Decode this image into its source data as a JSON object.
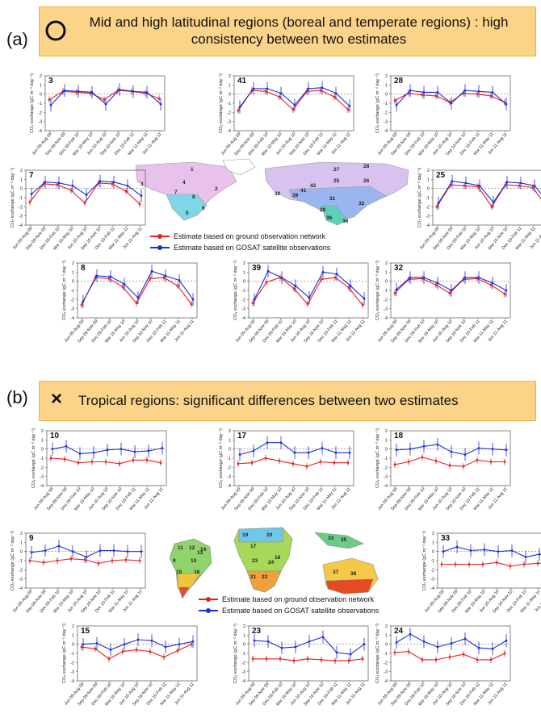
{
  "panel_a": {
    "label": "(a)",
    "mark": "circle",
    "banner_line1": "Mid and high latitudinal regions (boreal and temperate regions) : high",
    "banner_line2": "consistency between two estimates",
    "legend_ground": "Estimate based on ground observation network",
    "legend_gosat": "Estimate based on GOSAT satellite observations",
    "map_region_labels": [
      "1",
      "2",
      "3",
      "4",
      "5",
      "6",
      "7",
      "8",
      "25",
      "26",
      "27",
      "28",
      "29",
      "30",
      "31",
      "32",
      "34",
      "36",
      "39",
      "41",
      "42"
    ]
  },
  "panel_b": {
    "label": "(b)",
    "mark": "×",
    "banner_text": "Tropical regions: significant differences between two estimates",
    "legend_ground": "Estimate based on ground observation network",
    "legend_gosat": "Estimate based on GOSAT satellite observations",
    "map_region_labels": [
      "9",
      "10",
      "11",
      "12",
      "13",
      "14",
      "15",
      "16",
      "17",
      "18",
      "19",
      "20",
      "21",
      "22",
      "23",
      "24",
      "33",
      "35",
      "37",
      "38"
    ]
  },
  "colors": {
    "ground": "#e8201e",
    "gosat": "#1f2fd6",
    "banner": "#fbd48a",
    "banner_border": "#f0b040"
  },
  "common": {
    "y_label": "CO₂ exchange (gC m⁻² day⁻¹)",
    "categories": [
      "Jun 09-Aug 09",
      "Sep 09-Nov 09",
      "Dec 09-Feb 10",
      "Mar 10-May 10",
      "Jun 10-Aug 10",
      "Sep 10-Nov 10",
      "Dec 10-Feb 11",
      "Mar 11-May 11",
      "Jun 11-Aug 11"
    ],
    "ylim": [
      -4,
      2
    ],
    "yticks": [
      2,
      1,
      0,
      -1,
      -2,
      -3,
      -4
    ]
  },
  "chart_data": [
    {
      "type": "line",
      "title": "3",
      "categories": [
        "Jun 09-Aug 09",
        "Sep 09-Nov 09",
        "Dec 09-Feb 10",
        "Mar 10-May 10",
        "Jun 10-Aug 10",
        "Sep 10-Nov 10",
        "Dec 10-Feb 11",
        "Mar 11-May 11",
        "Jun 11-Aug 11"
      ],
      "ylim": [
        -4,
        2
      ],
      "series": [
        {
          "name": "Estimate based on ground observation network",
          "values": [
            -0.6,
            0.3,
            0.2,
            0.1,
            -0.6,
            0.4,
            0.3,
            0.1,
            -0.5
          ]
        },
        {
          "name": "Estimate based on GOSAT satellite observations",
          "values": [
            -1.2,
            0.4,
            0.3,
            0.2,
            -1.1,
            0.5,
            0.3,
            0.2,
            -1.1
          ]
        }
      ]
    },
    {
      "type": "line",
      "title": "41",
      "categories": [
        "Jun 09-Aug 09",
        "Sep 09-Nov 09",
        "Dec 09-Feb 10",
        "Mar 10-May 10",
        "Jun 10-Aug 10",
        "Sep 10-Nov 10",
        "Dec 10-Feb 11",
        "Mar 11-May 11",
        "Jun 11-Aug 11"
      ],
      "ylim": [
        -4,
        2
      ],
      "series": [
        {
          "name": "Estimate based on ground observation network",
          "values": [
            -1.8,
            0.4,
            0.3,
            -0.3,
            -1.7,
            0.3,
            0.4,
            -0.3,
            -1.7
          ]
        },
        {
          "name": "Estimate based on GOSAT satellite observations",
          "values": [
            -1.4,
            0.6,
            0.6,
            0.1,
            -1.2,
            0.6,
            0.7,
            0.1,
            -1.3
          ]
        }
      ]
    },
    {
      "type": "line",
      "title": "28",
      "categories": [
        "Jun 09-Aug 09",
        "Sep 09-Nov 09",
        "Dec 09-Feb 10",
        "Mar 10-May 10",
        "Jun 10-Aug 10",
        "Sep 10-Nov 10",
        "Dec 10-Feb 11",
        "Mar 11-May 11",
        "Jun 11-Aug 11"
      ],
      "ylim": [
        -4,
        2
      ],
      "series": [
        {
          "name": "Estimate based on ground observation network",
          "values": [
            -0.7,
            0.1,
            -0.1,
            -0.2,
            -0.9,
            0.1,
            0.0,
            -0.2,
            -0.9
          ]
        },
        {
          "name": "Estimate based on GOSAT satellite observations",
          "values": [
            -1.2,
            0.4,
            0.2,
            0.2,
            -1.0,
            0.4,
            0.3,
            0.2,
            -1.1
          ]
        }
      ]
    },
    {
      "type": "line",
      "title": "7",
      "categories": [
        "Jun 09-Aug 09",
        "Sep 09-Nov 09",
        "Dec 09-Feb 10",
        "Mar 10-May 10",
        "Jun 10-Aug 10",
        "Sep 10-Nov 10",
        "Dec 10-Feb 11",
        "Mar 11-May 11",
        "Jun 11-Aug 11"
      ],
      "ylim": [
        -4,
        2
      ],
      "series": [
        {
          "name": "Estimate based on ground observation network",
          "values": [
            -1.5,
            0.5,
            0.4,
            -0.2,
            -1.6,
            0.6,
            0.5,
            -0.3,
            -1.7
          ]
        },
        {
          "name": "Estimate based on GOSAT satellite observations",
          "values": [
            -0.6,
            0.7,
            0.6,
            0.3,
            -0.7,
            0.8,
            0.7,
            0.3,
            -0.8
          ]
        }
      ]
    },
    {
      "type": "line",
      "title": "25",
      "categories": [
        "Jun 09-Aug 09",
        "Sep 09-Nov 09",
        "Dec 09-Feb 10",
        "Mar 10-May 10",
        "Jun 10-Aug 10",
        "Sep 10-Nov 10",
        "Dec 10-Feb 11",
        "Mar 11-May 11",
        "Jun 11-Aug 11"
      ],
      "ylim": [
        -4,
        2
      ],
      "series": [
        {
          "name": "Estimate based on ground observation network",
          "values": [
            -2.0,
            0.4,
            0.3,
            0.2,
            -2.0,
            0.4,
            0.3,
            0.1,
            -2.0
          ]
        },
        {
          "name": "Estimate based on GOSAT satellite observations",
          "values": [
            -1.6,
            0.8,
            0.6,
            0.3,
            -1.5,
            0.7,
            0.6,
            0.3,
            -1.5
          ]
        }
      ]
    },
    {
      "type": "line",
      "title": "8",
      "categories": [
        "Jun 09-Aug 09",
        "Sep 09-Nov 09",
        "Dec 09-Feb 10",
        "Mar 10-May 10",
        "Jun 10-Aug 10",
        "Sep 10-Nov 10",
        "Dec 10-Feb 11",
        "Mar 11-May 11",
        "Jun 11-Aug 11"
      ],
      "ylim": [
        -4,
        2
      ],
      "series": [
        {
          "name": "Estimate based on ground observation network",
          "values": [
            -2.6,
            0.4,
            0.3,
            -0.6,
            -2.4,
            0.3,
            0.4,
            -0.5,
            -2.5
          ]
        },
        {
          "name": "Estimate based on GOSAT satellite observations",
          "values": [
            -2.2,
            0.6,
            0.5,
            -0.3,
            -1.8,
            1.1,
            0.6,
            0.1,
            -2.0
          ]
        }
      ]
    },
    {
      "type": "line",
      "title": "39",
      "categories": [
        "Jun 09-Aug 09",
        "Sep 09-Nov 09",
        "Dec 09-Feb 10",
        "Mar 10-May 10",
        "Jun 10-Aug 10",
        "Sep 10-Nov 10",
        "Dec 10-Feb 11",
        "Mar 11-May 11",
        "Jun 11-Aug 11"
      ],
      "ylim": [
        -4,
        2
      ],
      "series": [
        {
          "name": "Estimate based on ground observation network",
          "values": [
            -2.4,
            -0.1,
            0.4,
            -0.8,
            -2.5,
            0.2,
            0.4,
            -0.7,
            -2.6
          ]
        },
        {
          "name": "Estimate based on GOSAT satellite observations",
          "values": [
            -2.0,
            1.1,
            0.4,
            -0.5,
            -1.8,
            1.0,
            0.8,
            -0.5,
            -1.9
          ]
        }
      ]
    },
    {
      "type": "line",
      "title": "32",
      "categories": [
        "Jun 09-Aug 09",
        "Sep 09-Nov 09",
        "Dec 09-Feb 10",
        "Mar 10-May 10",
        "Jun 10-Aug 10",
        "Sep 10-Nov 10",
        "Dec 10-Feb 11",
        "Mar 11-May 11",
        "Jun 11-Aug 11"
      ],
      "ylim": [
        -4,
        2
      ],
      "series": [
        {
          "name": "Estimate based on ground observation network",
          "values": [
            -1.3,
            0.2,
            0.3,
            -0.4,
            -1.3,
            0.2,
            0.3,
            -0.4,
            -1.4
          ]
        },
        {
          "name": "Estimate based on GOSAT satellite observations",
          "values": [
            -0.9,
            0.4,
            0.4,
            -0.2,
            -1.0,
            0.4,
            0.4,
            -0.2,
            -1.0
          ]
        }
      ]
    },
    {
      "type": "line",
      "title": "10",
      "categories": [
        "Jun 09-Aug 09",
        "Sep 09-Nov 09",
        "Dec 09-Feb 10",
        "Mar 10-May 10",
        "Jun 10-Aug 10",
        "Sep 10-Nov 10",
        "Dec 10-Feb 11",
        "Mar 11-May 11",
        "Jun 11-Aug 11"
      ],
      "ylim": [
        -4,
        2
      ],
      "series": [
        {
          "name": "Estimate based on ground observation network",
          "values": [
            -1.0,
            -1.1,
            -1.5,
            -1.4,
            -1.4,
            -1.6,
            -1.2,
            -1.2,
            -1.5
          ]
        },
        {
          "name": "Estimate based on GOSAT satellite observations",
          "values": [
            0.0,
            0.3,
            -0.5,
            -0.4,
            -0.1,
            0.0,
            -0.3,
            -0.2,
            0.1
          ]
        }
      ]
    },
    {
      "type": "line",
      "title": "17",
      "categories": [
        "Jun 09-Aug 09",
        "Sep 09-Nov 09",
        "Dec 09-Feb 10",
        "Mar 10-May 10",
        "Jun 10-Aug 10",
        "Sep 10-Nov 10",
        "Dec 10-Feb 11",
        "Mar 11-May 11",
        "Jun 11-Aug 11"
      ],
      "ylim": [
        -4,
        2
      ],
      "series": [
        {
          "name": "Estimate based on ground observation network",
          "values": [
            -1.6,
            -1.5,
            -1.0,
            -1.3,
            -1.6,
            -1.9,
            -1.4,
            -1.5,
            -1.5
          ]
        },
        {
          "name": "Estimate based on GOSAT satellite observations",
          "values": [
            -0.6,
            -0.2,
            0.7,
            0.7,
            -0.4,
            -0.4,
            0.1,
            -0.4,
            -0.4
          ]
        }
      ]
    },
    {
      "type": "line",
      "title": "18",
      "categories": [
        "Jun 09-Aug 09",
        "Sep 09-Nov 09",
        "Dec 09-Feb 10",
        "Mar 10-May 10",
        "Jun 10-Aug 10",
        "Sep 10-Nov 10",
        "Dec 10-Feb 11",
        "Mar 11-May 11",
        "Jun 11-Aug 11"
      ],
      "ylim": [
        -4,
        2
      ],
      "series": [
        {
          "name": "Estimate based on ground observation network",
          "values": [
            -1.7,
            -1.4,
            -0.9,
            -1.3,
            -1.8,
            -1.9,
            -1.2,
            -1.4,
            -1.4
          ]
        },
        {
          "name": "Estimate based on GOSAT satellite observations",
          "values": [
            -0.1,
            0.0,
            0.3,
            0.5,
            -0.3,
            -0.6,
            0.1,
            0.0,
            -0.1
          ]
        }
      ]
    },
    {
      "type": "line",
      "title": "9",
      "categories": [
        "Jun 09-Aug 09",
        "Sep 09-Nov 09",
        "Dec 09-Feb 10",
        "Mar 10-May 10",
        "Jun 10-Aug 10",
        "Sep 10-Nov 10",
        "Dec 10-Feb 11",
        "Mar 11-May 11",
        "Jun 11-Aug 11"
      ],
      "ylim": [
        -4,
        2
      ],
      "series": [
        {
          "name": "Estimate based on ground observation network",
          "values": [
            -1.0,
            -1.2,
            -1.0,
            -0.8,
            -0.9,
            -1.3,
            -1.0,
            -0.9,
            -1.0
          ]
        },
        {
          "name": "Estimate based on GOSAT satellite observations",
          "values": [
            -0.1,
            0.1,
            0.6,
            0.0,
            -0.6,
            0.1,
            0.1,
            0.0,
            0.0
          ]
        }
      ]
    },
    {
      "type": "line",
      "title": "33",
      "categories": [
        "Jun 09-Aug 09",
        "Sep 09-Nov 09",
        "Dec 09-Feb 10",
        "Mar 10-May 10",
        "Jun 10-Aug 10",
        "Sep 10-Nov 10",
        "Dec 10-Feb 11",
        "Mar 11-May 11",
        "Jun 11-Aug 11"
      ],
      "ylim": [
        -4,
        2
      ],
      "series": [
        {
          "name": "Estimate based on ground observation network",
          "values": [
            -1.4,
            -1.4,
            -1.4,
            -1.4,
            -1.2,
            -1.6,
            -1.4,
            -1.3,
            -1.2
          ]
        },
        {
          "name": "Estimate based on GOSAT satellite observations",
          "values": [
            0.0,
            0.5,
            0.1,
            0.2,
            0.0,
            0.1,
            -0.6,
            -0.3,
            -0.2
          ]
        }
      ]
    },
    {
      "type": "line",
      "title": "15",
      "categories": [
        "Jun 09-Aug 09",
        "Sep 09-Nov 09",
        "Dec 09-Feb 10",
        "Mar 10-May 10",
        "Jun 10-Aug 10",
        "Sep 10-Nov 10",
        "Dec 10-Feb 11",
        "Mar 11-May 11",
        "Jun 11-Aug 11"
      ],
      "ylim": [
        -4,
        2
      ],
      "series": [
        {
          "name": "Estimate based on ground observation network",
          "values": [
            -0.3,
            -0.5,
            -1.6,
            -0.8,
            -0.6,
            -0.8,
            -1.4,
            -0.7,
            0.0
          ]
        },
        {
          "name": "Estimate based on GOSAT satellite observations",
          "values": [
            0.0,
            0.1,
            -0.6,
            0.0,
            0.5,
            0.4,
            -0.3,
            0.0,
            0.3
          ]
        }
      ]
    },
    {
      "type": "line",
      "title": "23",
      "categories": [
        "Jun 09-Aug 09",
        "Sep 09-Nov 09",
        "Dec 09-Feb 10",
        "Mar 10-May 10",
        "Jun 10-Aug 10",
        "Sep 10-Nov 10",
        "Dec 10-Feb 11",
        "Mar 11-May 11",
        "Jun 11-Aug 11"
      ],
      "ylim": [
        -4,
        2
      ],
      "series": [
        {
          "name": "Estimate based on ground observation network",
          "values": [
            -1.6,
            -1.6,
            -1.6,
            -1.8,
            -1.6,
            -1.7,
            -1.8,
            -1.8,
            -1.6
          ]
        },
        {
          "name": "Estimate based on GOSAT satellite observations",
          "values": [
            0.4,
            0.3,
            -0.4,
            -0.3,
            0.3,
            0.8,
            -0.9,
            -1.1,
            0.0
          ]
        }
      ]
    },
    {
      "type": "line",
      "title": "24",
      "categories": [
        "Jun 09-Aug 09",
        "Sep 09-Nov 09",
        "Dec 09-Feb 10",
        "Mar 10-May 10",
        "Jun 10-Aug 10",
        "Sep 10-Nov 10",
        "Dec 10-Feb 11",
        "Mar 11-May 11",
        "Jun 11-Aug 11"
      ],
      "ylim": [
        -4,
        2
      ],
      "series": [
        {
          "name": "Estimate based on ground observation network",
          "values": [
            -0.9,
            -0.8,
            -1.7,
            -1.7,
            -1.4,
            -1.1,
            -1.7,
            -1.7,
            -1.0
          ]
        },
        {
          "name": "Estimate based on GOSAT satellite observations",
          "values": [
            0.2,
            1.1,
            0.3,
            -0.3,
            0.1,
            0.6,
            -0.4,
            -0.5,
            0.4
          ]
        }
      ]
    }
  ]
}
